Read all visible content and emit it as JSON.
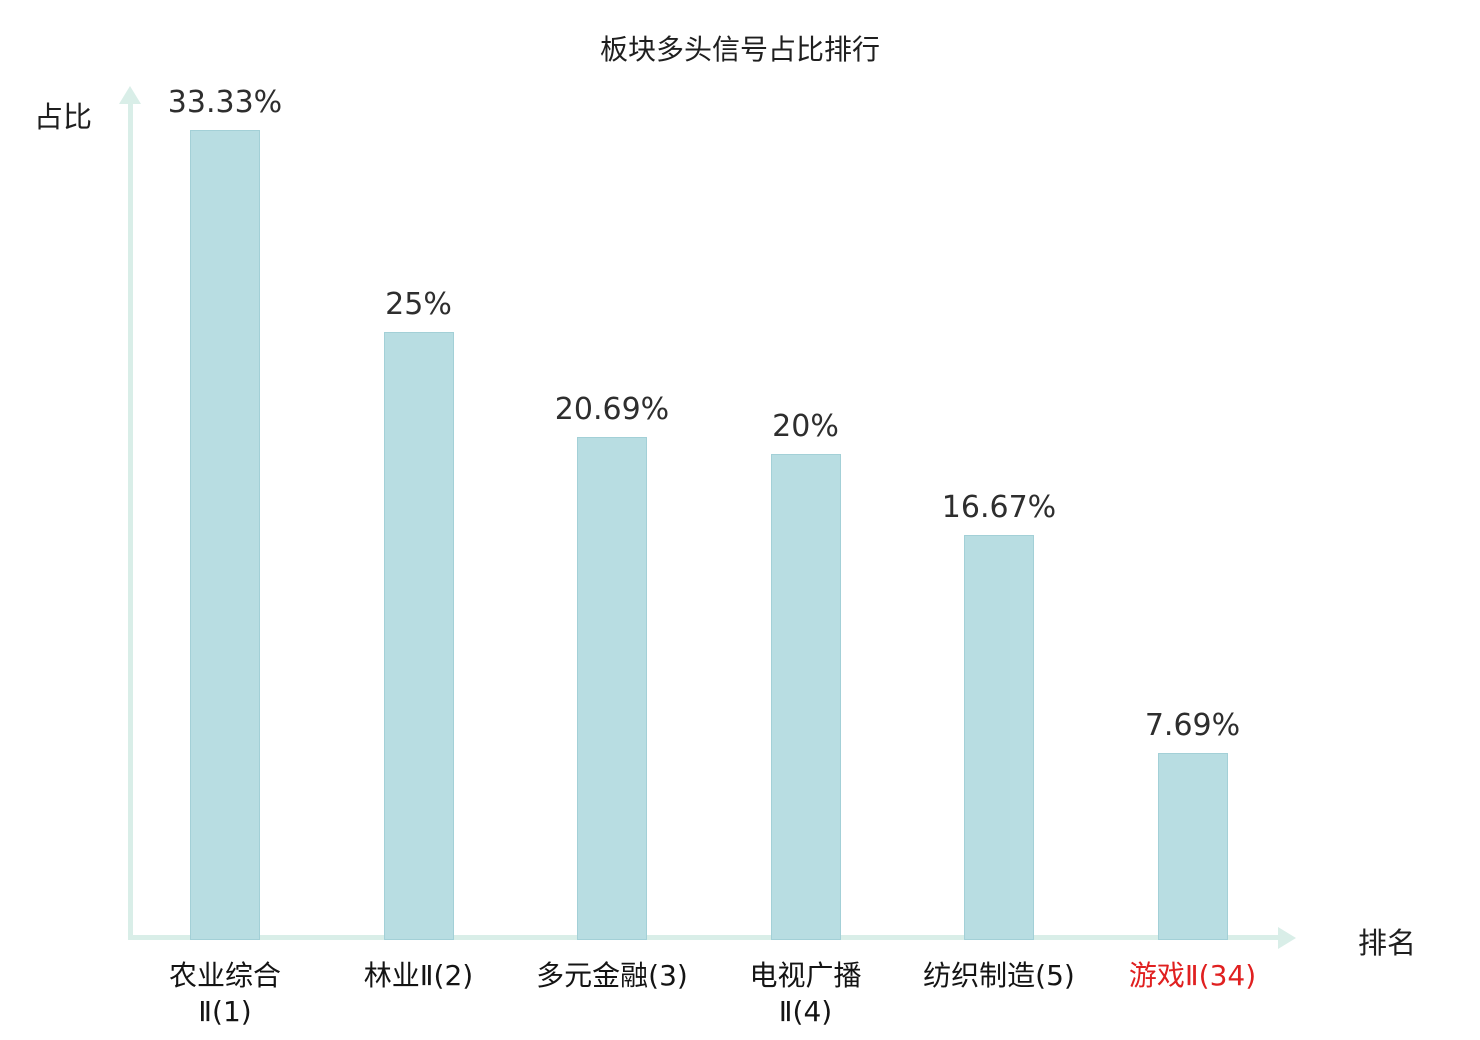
{
  "title": "板块多头信号占比排行",
  "axes": {
    "y_label": "占比",
    "x_label": "排名"
  },
  "colors": {
    "bar_fill": "#b8dde2",
    "bar_border": "#a3d0d7",
    "axis": "#d9eee8",
    "value_label": "#2e2e2e",
    "category_label": "#141414",
    "highlight_label": "#e02020"
  },
  "chart_data": {
    "type": "bar",
    "title": "板块多头信号占比排行",
    "xlabel": "排名",
    "ylabel": "占比",
    "categories": [
      "农业综合Ⅱ(1)",
      "林业Ⅱ(2)",
      "多元金融(3)",
      "电视广播Ⅱ(4)",
      "纺织制造(5)",
      "游戏Ⅱ(34)"
    ],
    "values": [
      33.33,
      25,
      20.69,
      20,
      16.67,
      7.69
    ],
    "value_labels": [
      "33.33%",
      "25%",
      "20.69%",
      "20%",
      "16.67%",
      "7.69%"
    ],
    "category_lines": [
      [
        "农业综合",
        "Ⅱ(1)"
      ],
      [
        "林业Ⅱ(2)"
      ],
      [
        "多元金融(3)"
      ],
      [
        "电视广播",
        "Ⅱ(4)"
      ],
      [
        "纺织制造(5)"
      ],
      [
        "游戏Ⅱ(34)"
      ]
    ],
    "highlight_index": 5,
    "ylim": [
      0,
      35
    ],
    "grid": false,
    "legend": null
  }
}
